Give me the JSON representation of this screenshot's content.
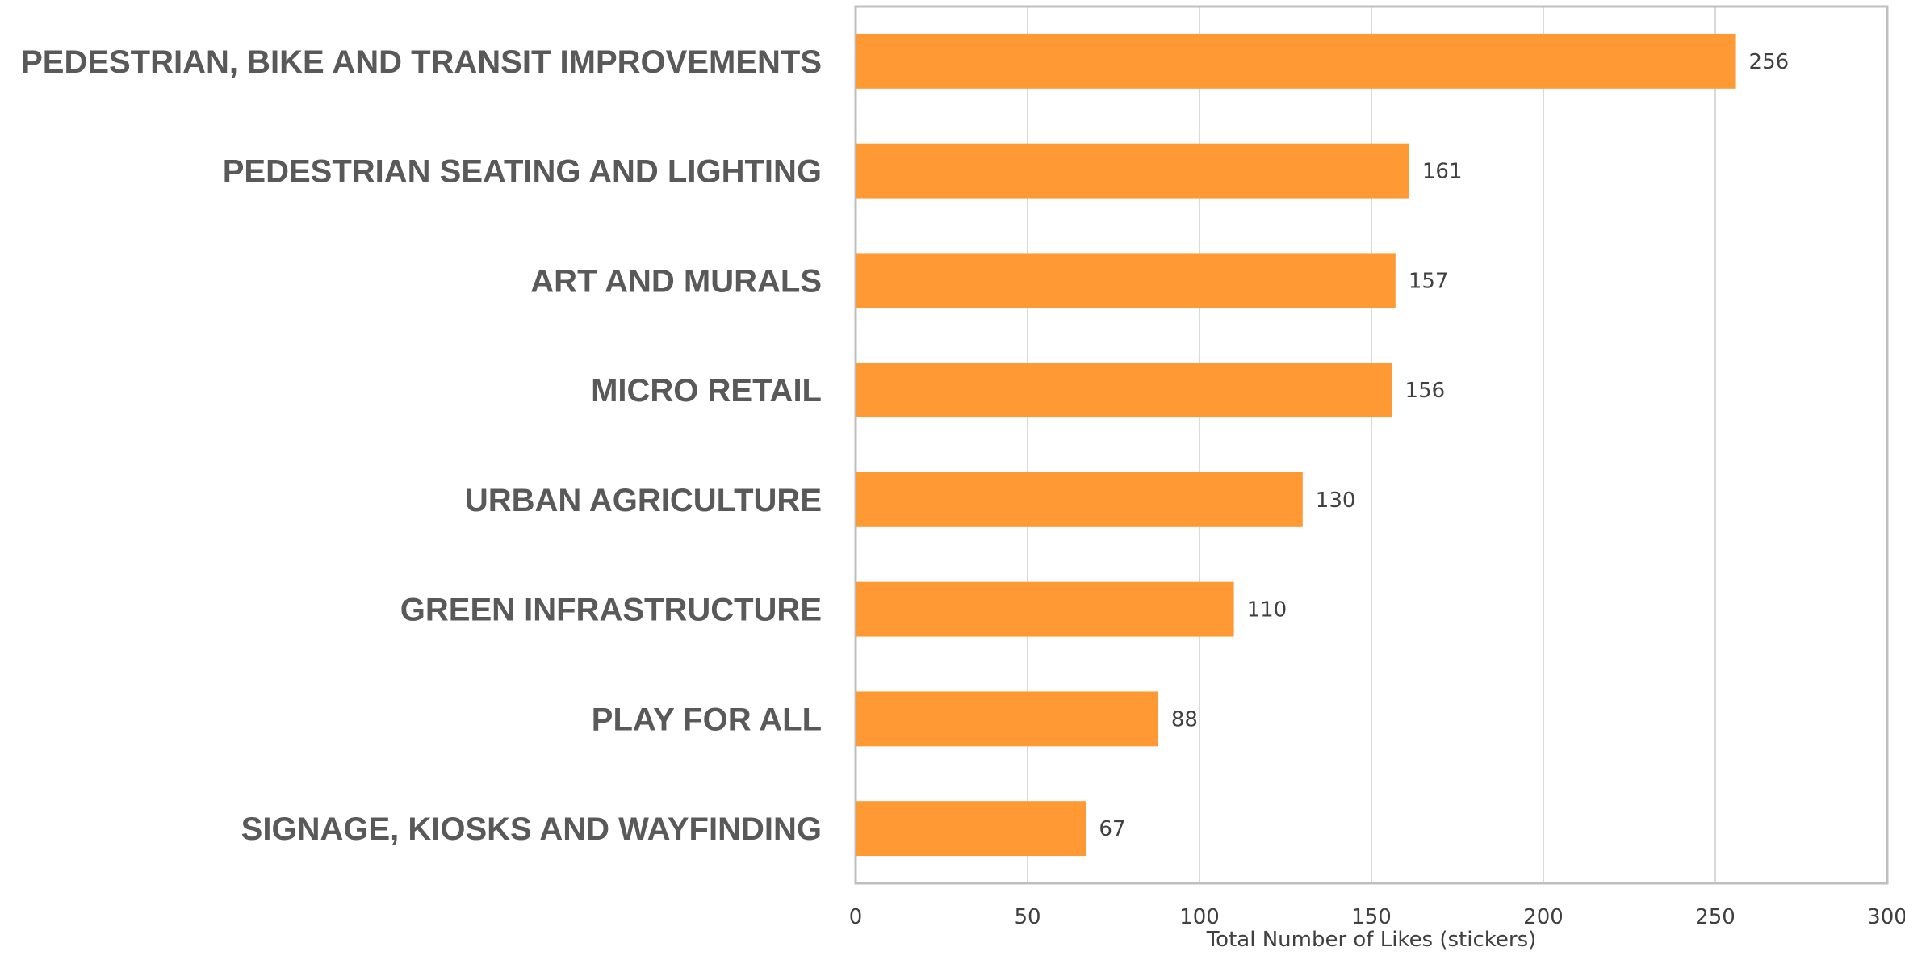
{
  "chart_data": {
    "type": "bar",
    "orientation": "horizontal",
    "categories": [
      "PEDESTRIAN, BIKE AND TRANSIT IMPROVEMENTS",
      "PEDESTRIAN SEATING AND LIGHTING",
      "ART AND MURALS",
      "MICRO RETAIL",
      "URBAN AGRICULTURE",
      "GREEN INFRASTRUCTURE",
      "PLAY FOR ALL",
      "SIGNAGE, KIOSKS AND WAYFINDING"
    ],
    "values": [
      256,
      161,
      157,
      156,
      130,
      110,
      88,
      67
    ],
    "title": "",
    "xlabel": "Total Number of Likes (stickers)",
    "ylabel": "",
    "xlim": [
      0,
      300
    ],
    "xticks": [
      0,
      50,
      100,
      150,
      200,
      250,
      300
    ],
    "bar_color": "#FF9933",
    "grid": "vertical",
    "data_labels": true
  }
}
